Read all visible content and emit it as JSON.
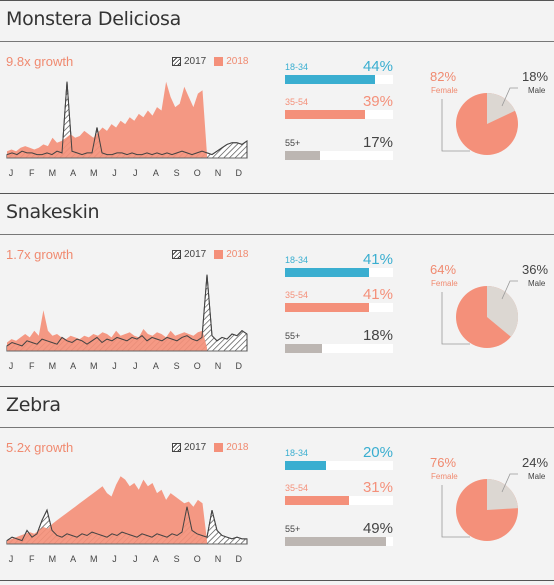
{
  "colors": {
    "accent_2018": "#f4907a",
    "growth_text": "#f08a70",
    "age_18_34": "#3aaed0",
    "age_35_54": "#f4907a",
    "age_55": "#bcb6b2",
    "male_slice": "#dcd7d2",
    "female_slice": "#f4907a"
  },
  "legend": {
    "label_2017": "2017",
    "label_2018": "2018"
  },
  "months": [
    "J",
    "F",
    "M",
    "A",
    "M",
    "J",
    "J",
    "A",
    "S",
    "O",
    "N",
    "D"
  ],
  "chart_data": [
    {
      "type": "area",
      "title": "Monstera Deliciosa",
      "subtitle": "9.8x growth",
      "x": "Jan–Dec",
      "series": [
        {
          "name": "2017",
          "values": [
            2,
            3,
            2,
            4,
            3,
            3,
            2,
            2,
            3,
            2,
            4,
            3,
            45,
            4,
            3,
            2,
            3,
            3,
            18,
            3,
            2,
            2,
            3,
            3,
            2,
            3,
            2,
            2,
            3,
            2,
            3,
            2,
            3,
            2,
            3,
            4,
            3,
            2,
            3,
            4,
            3,
            2,
            4,
            6,
            8,
            9,
            9,
            8,
            10
          ]
        },
        {
          "name": "2018",
          "values": [
            4,
            5,
            4,
            6,
            7,
            6,
            5,
            6,
            8,
            7,
            12,
            9,
            10,
            12,
            14,
            12,
            13,
            16,
            14,
            12,
            15,
            18,
            16,
            20,
            18,
            22,
            20,
            24,
            22,
            26,
            24,
            28,
            25,
            30,
            28,
            45,
            36,
            30,
            32,
            42,
            36,
            30,
            38,
            40,
            2
          ]
        }
      ],
      "age": [
        {
          "group": "18-34",
          "pct": "44%",
          "value": 44
        },
        {
          "group": "35-54",
          "pct": "39%",
          "value": 39
        },
        {
          "group": "55+",
          "pct": "17%",
          "value": 17
        }
      ],
      "gender": {
        "female_pct": "82%",
        "female_label": "Female",
        "male_pct": "18%",
        "male_label": "Male",
        "female_value": 82
      }
    },
    {
      "type": "area",
      "title": "Snakeskin",
      "subtitle": "1.7x growth",
      "x": "Jan–Dec",
      "series": [
        {
          "name": "2017",
          "values": [
            3,
            5,
            4,
            3,
            6,
            5,
            4,
            7,
            6,
            5,
            4,
            8,
            6,
            5,
            7,
            6,
            4,
            6,
            8,
            5,
            7,
            6,
            8,
            7,
            6,
            8,
            7,
            9,
            6,
            8,
            7,
            6,
            8,
            7,
            6,
            8,
            9,
            7,
            6,
            8,
            45,
            9,
            6,
            8,
            7,
            10,
            9,
            12,
            10
          ]
        },
        {
          "name": "2018",
          "values": [
            5,
            7,
            6,
            8,
            10,
            8,
            12,
            9,
            24,
            12,
            9,
            10,
            8,
            7,
            9,
            8,
            7,
            9,
            8,
            10,
            9,
            11,
            10,
            8,
            12,
            9,
            10,
            11,
            9,
            8,
            13,
            10,
            9,
            11,
            10,
            8,
            12,
            9,
            10,
            11,
            10,
            9,
            11,
            12,
            2
          ]
        }
      ],
      "age": [
        {
          "group": "18-34",
          "pct": "41%",
          "value": 41
        },
        {
          "group": "35-54",
          "pct": "41%",
          "value": 41
        },
        {
          "group": "55+",
          "pct": "18%",
          "value": 18
        }
      ],
      "gender": {
        "female_pct": "64%",
        "female_label": "Female",
        "male_pct": "36%",
        "male_label": "Male",
        "female_value": 64
      }
    },
    {
      "type": "area",
      "title": "Zebra",
      "subtitle": "5.2x growth",
      "x": "Jan–Dec",
      "series": [
        {
          "name": "2017",
          "values": [
            2,
            4,
            3,
            2,
            8,
            4,
            6,
            14,
            20,
            8,
            5,
            4,
            6,
            5,
            4,
            6,
            5,
            7,
            6,
            5,
            4,
            6,
            5,
            7,
            6,
            5,
            4,
            6,
            5,
            4,
            6,
            5,
            4,
            6,
            5,
            7,
            22,
            8,
            6,
            5,
            4,
            20,
            8,
            5,
            4,
            3,
            4,
            3,
            3
          ]
        },
        {
          "name": "2018",
          "values": [
            2,
            3,
            4,
            5,
            6,
            7,
            6,
            8,
            10,
            9,
            12,
            14,
            16,
            18,
            20,
            22,
            24,
            26,
            28,
            30,
            32,
            34,
            30,
            28,
            35,
            40,
            38,
            34,
            36,
            32,
            38,
            34,
            36,
            30,
            32,
            26,
            30,
            28,
            26,
            24,
            25,
            22,
            26,
            24,
            2
          ]
        }
      ],
      "age": [
        {
          "group": "18-34",
          "pct": "20%",
          "value": 20
        },
        {
          "group": "35-54",
          "pct": "31%",
          "value": 31
        },
        {
          "group": "55+",
          "pct": "49%",
          "value": 49
        }
      ],
      "gender": {
        "female_pct": "76%",
        "female_label": "Female",
        "male_pct": "24%",
        "male_label": "Male",
        "female_value": 76
      }
    }
  ]
}
